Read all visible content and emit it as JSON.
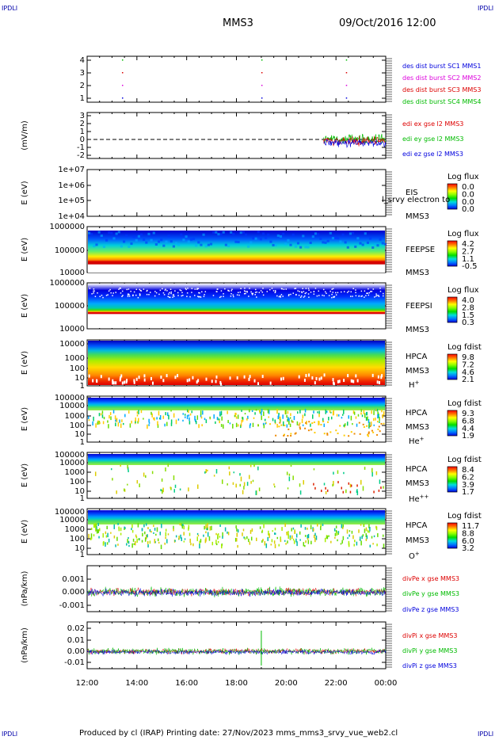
{
  "header": {
    "corner_label": "IPDLI",
    "mission": "MMS3",
    "datetime": "09/Oct/2016 12:00"
  },
  "footer": {
    "text": "Produced by cl (IRAP)   Printing date: 27/Nov/2023   mms_mms3_srvy_vue_web2.cl"
  },
  "colors": {
    "blue": "#0000dd",
    "magenta": "#dd00dd",
    "red": "#dd0000",
    "green": "#00bb00"
  },
  "chart_data": {
    "type": "stacked-panels",
    "x_axis": {
      "ticks": [
        "12:00",
        "14:00",
        "16:00",
        "18:00",
        "20:00",
        "22:00",
        "00:00"
      ],
      "range_hours": [
        12,
        24
      ]
    },
    "panels": [
      {
        "id": "burst",
        "type": "scatter",
        "ylabel": "",
        "ticks": [
          "4",
          "3",
          "2",
          "1"
        ],
        "legend": [
          {
            "text": "des dist burst SC1 MMS1",
            "color": "#0000dd"
          },
          {
            "text": "des dist burst SC2 MMS2",
            "color": "#dd00dd"
          },
          {
            "text": "des dist burst SC3 MMS3",
            "color": "#dd0000"
          },
          {
            "text": "des dist burst SC4 MMS4",
            "color": "#00bb00"
          }
        ],
        "points_hours": [
          13.4,
          19.0,
          22.4
        ]
      },
      {
        "id": "edi",
        "type": "line",
        "ylabel": "(mV/m)",
        "ticks": [
          "3",
          "2",
          "1",
          "0",
          "-1",
          "-2"
        ],
        "ylim": [
          -2,
          3
        ],
        "data_start_hour": 21.5,
        "legend": [
          {
            "text": "edi ex gse l2 MMS3",
            "color": "#dd0000"
          },
          {
            "text": "edi ey gse l2 MMS3",
            "color": "#00bb00"
          },
          {
            "text": "edi ez gse l2 MMS3",
            "color": "#0000dd"
          }
        ]
      },
      {
        "id": "eis",
        "type": "spectrogram",
        "ylabel": "E (eV)",
        "ticks": [
          "1e+07",
          "1e+06",
          "1e+05",
          "1e+04"
        ],
        "labels": [
          "EIS",
          "MMS3"
        ],
        "overlay_text": "l_srvy electron to",
        "cbar_title": "Log flux",
        "cbar_values": [
          "0.0",
          "0.0",
          "0.0",
          "0.0"
        ]
      },
      {
        "id": "feepse",
        "type": "spectrogram",
        "ylabel": "E (eV)",
        "ticks": [
          "1000000",
          "100000",
          "10000"
        ],
        "labels": [
          "FEEPSE",
          "MMS3"
        ],
        "cbar_title": "Log flux",
        "cbar_values": [
          "4.2",
          "2.7",
          "1.1",
          "-0.5"
        ]
      },
      {
        "id": "feepsi",
        "type": "spectrogram",
        "ylabel": "E (eV)",
        "ticks": [
          "1000000",
          "100000",
          "10000"
        ],
        "labels": [
          "FEEPSI",
          "MMS3"
        ],
        "cbar_title": "Log flux",
        "cbar_values": [
          "4.0",
          "2.8",
          "1.5",
          "0.3"
        ]
      },
      {
        "id": "hpca_h",
        "type": "spectrogram",
        "ylabel": "E (eV)",
        "ticks": [
          "10000",
          "1000",
          "100",
          "10",
          "1"
        ],
        "labels": [
          "HPCA",
          "MMS3",
          "H+"
        ],
        "cbar_title": "Log fdist",
        "cbar_values": [
          "9.8",
          "7.2",
          "4.6",
          "2.1"
        ]
      },
      {
        "id": "hpca_he",
        "type": "spectrogram",
        "ylabel": "E (eV)",
        "ticks": [
          "100000",
          "10000",
          "1000",
          "100",
          "10",
          "1"
        ],
        "labels": [
          "HPCA",
          "MMS3",
          "He+"
        ],
        "cbar_title": "Log fdist",
        "cbar_values": [
          "9.3",
          "6.8",
          "4.4",
          "1.9"
        ]
      },
      {
        "id": "hpca_hepp",
        "type": "spectrogram",
        "ylabel": "E (eV)",
        "ticks": [
          "100000",
          "10000",
          "1000",
          "100",
          "10",
          "1"
        ],
        "labels": [
          "HPCA",
          "MMS3",
          "He++"
        ],
        "cbar_title": "Log fdist",
        "cbar_values": [
          "8.4",
          "6.2",
          "3.9",
          "1.7"
        ]
      },
      {
        "id": "hpca_o",
        "type": "spectrogram",
        "ylabel": "E (eV)",
        "ticks": [
          "100000",
          "10000",
          "1000",
          "100",
          "10",
          "1"
        ],
        "labels": [
          "HPCA",
          "MMS3",
          "O+"
        ],
        "cbar_title": "Log fdist",
        "cbar_values": [
          "11.7",
          "8.8",
          "6.0",
          "3.2"
        ]
      },
      {
        "id": "divpe",
        "type": "line",
        "ylabel": "(nPa/km)",
        "ticks": [
          "0.001",
          "0.000",
          "-0.001"
        ],
        "ylim": [
          -0.0015,
          0.0015
        ],
        "legend": [
          {
            "text": "divPe x gse MMS3",
            "color": "#dd0000"
          },
          {
            "text": "divPe y gse MMS3",
            "color": "#00bb00"
          },
          {
            "text": "divPe z gse MMS3",
            "color": "#0000dd"
          }
        ]
      },
      {
        "id": "divpi",
        "type": "line",
        "ylabel": "(nPa/km)",
        "ticks": [
          "0.02",
          "0.01",
          "0.00",
          "-0.01"
        ],
        "ylim": [
          -0.015,
          0.025
        ],
        "legend": [
          {
            "text": "divPi x gse MMS3",
            "color": "#dd0000"
          },
          {
            "text": "divPi y gse MMS3",
            "color": "#00bb00"
          },
          {
            "text": "divPi z gse MMS3",
            "color": "#0000dd"
          }
        ]
      }
    ]
  }
}
